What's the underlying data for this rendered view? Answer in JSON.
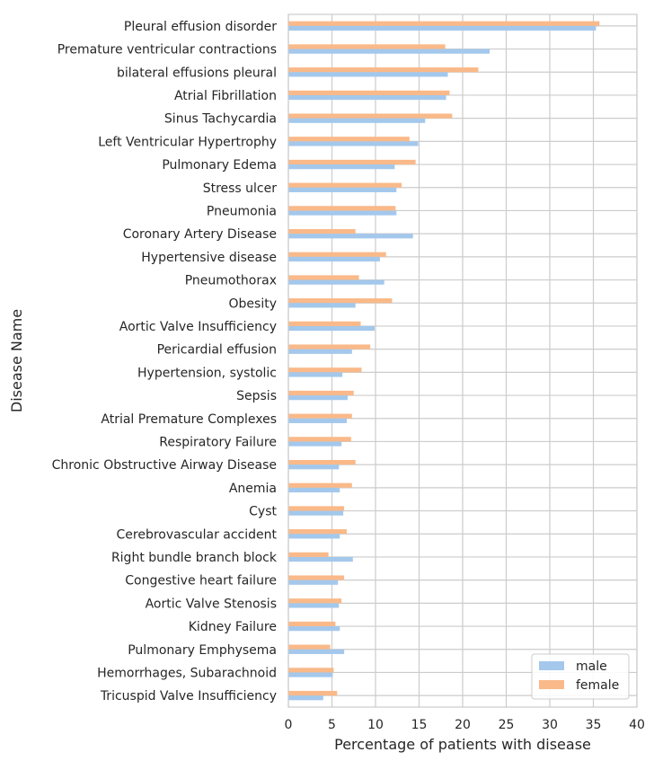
{
  "chart_data": {
    "type": "bar",
    "orientation": "horizontal",
    "xlabel": "Percentage of patients with disease",
    "ylabel": "Disease Name",
    "xlim": [
      0,
      40
    ],
    "xticks": [
      "0",
      "5",
      "10",
      "15",
      "20",
      "25",
      "30",
      "35",
      "40"
    ],
    "grid": true,
    "legend_position": "bottom-right",
    "categories": [
      "Pleural effusion disorder",
      "Premature ventricular contractions",
      "bilateral effusions pleural",
      "Atrial Fibrillation",
      "Sinus Tachycardia",
      "Left Ventricular Hypertrophy",
      "Pulmonary Edema",
      "Stress ulcer",
      "Pneumonia",
      "Coronary Artery Disease",
      "Hypertensive disease",
      "Pneumothorax",
      "Obesity",
      "Aortic Valve Insufficiency",
      "Pericardial effusion",
      "Hypertension, systolic",
      "Sepsis",
      "Atrial Premature Complexes",
      "Respiratory Failure",
      "Chronic Obstructive Airway Disease",
      "Anemia",
      "Cyst",
      "Cerebrovascular accident",
      "Right bundle branch block",
      "Congestive heart failure",
      "Aortic Valve Stenosis",
      "Kidney Failure",
      "Pulmonary Emphysema",
      "Hemorrhages, Subarachnoid",
      "Tricuspid Valve Insufficiency"
    ],
    "series": [
      {
        "name": "female",
        "color": "#fab989",
        "values": [
          35.7,
          18.0,
          21.8,
          18.5,
          18.8,
          13.9,
          14.6,
          13.0,
          12.3,
          7.7,
          11.2,
          8.1,
          11.9,
          8.3,
          9.4,
          8.4,
          7.5,
          7.3,
          7.2,
          7.7,
          7.3,
          6.4,
          6.7,
          4.6,
          6.4,
          6.1,
          5.4,
          4.8,
          5.2,
          5.6
        ]
      },
      {
        "name": "male",
        "color": "#a4c8ec",
        "values": [
          35.3,
          23.1,
          18.3,
          18.1,
          15.7,
          14.9,
          12.2,
          12.4,
          12.4,
          14.3,
          10.5,
          11.0,
          7.7,
          9.9,
          7.3,
          6.2,
          6.8,
          6.7,
          6.1,
          5.8,
          5.9,
          6.3,
          5.9,
          7.4,
          5.7,
          5.8,
          5.9,
          6.4,
          5.1,
          4.0
        ]
      }
    ],
    "legend": [
      "male",
      "female"
    ],
    "grid_color": "#cccccc",
    "axis_color": "#cccccc",
    "text_color": "#262626"
  }
}
